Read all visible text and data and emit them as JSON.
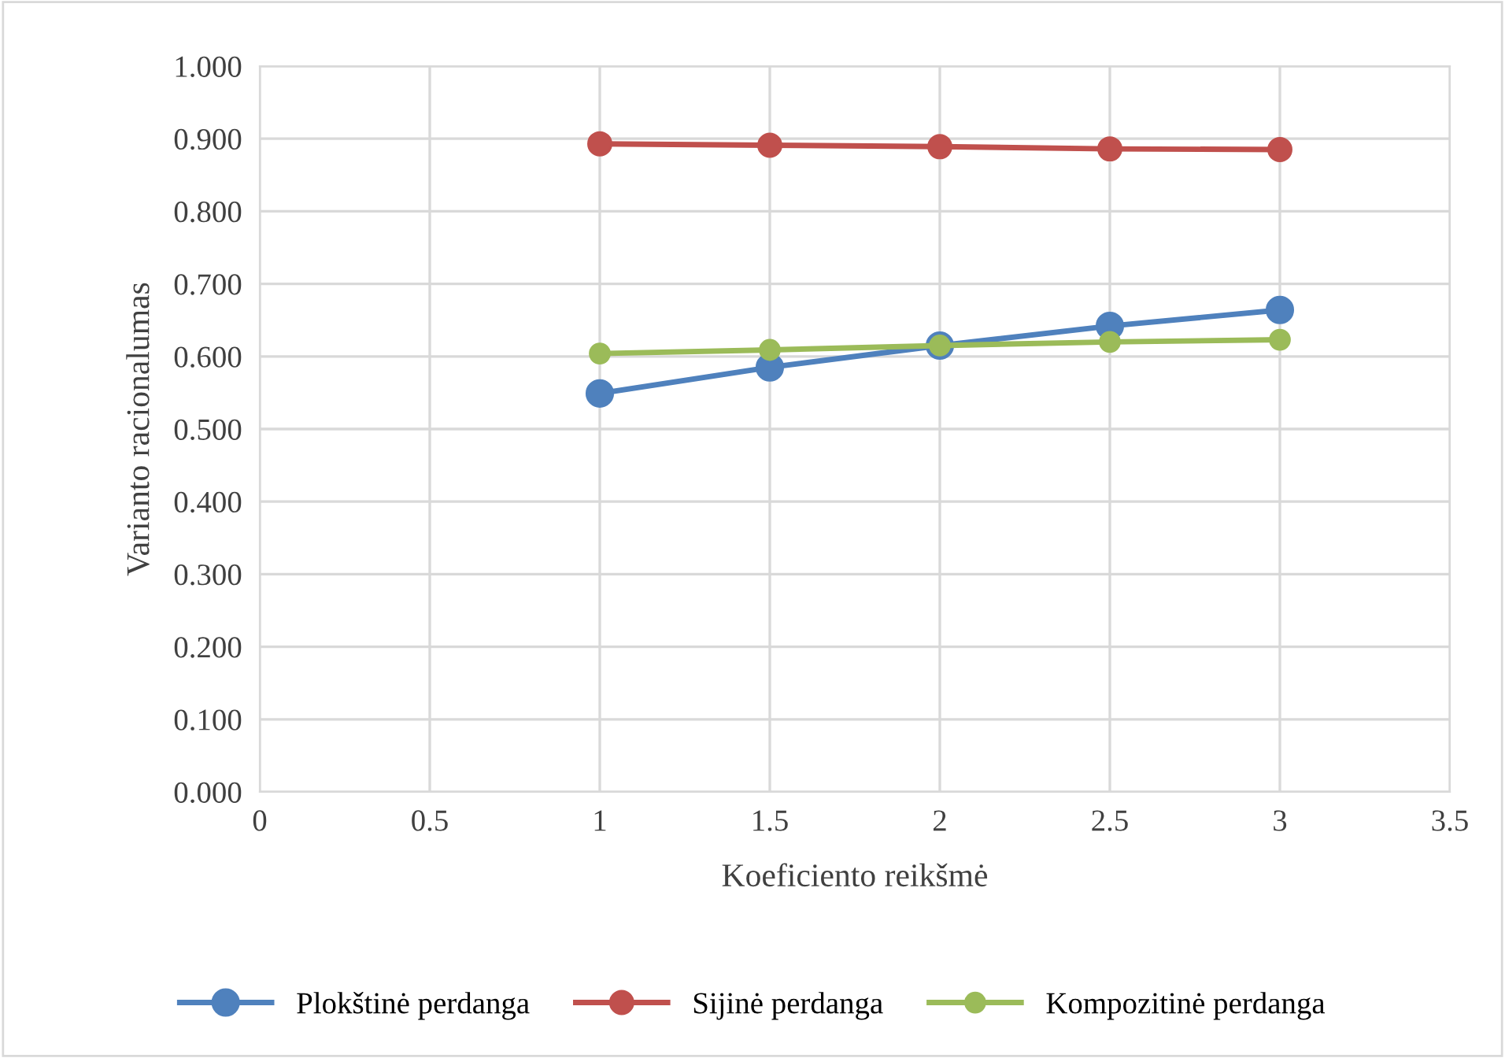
{
  "chart_data": {
    "type": "line",
    "xlabel": "Koeficiento reikšmė",
    "ylabel": "Varianto racionalumas",
    "x": [
      1,
      1.5,
      2,
      2.5,
      3
    ],
    "series": [
      {
        "name": "Plokštinė perdanga",
        "color": "#4f81bd",
        "values": [
          0.549,
          0.585,
          0.615,
          0.642,
          0.664
        ]
      },
      {
        "name": "Sijinė perdanga",
        "color": "#c0504d",
        "values": [
          0.893,
          0.891,
          0.889,
          0.886,
          0.885
        ]
      },
      {
        "name": "Kompozitinė perdanga",
        "color": "#9bbb59",
        "values": [
          0.604,
          0.609,
          0.615,
          0.62,
          0.623
        ]
      }
    ],
    "xlim": [
      0,
      3.5
    ],
    "xticks": [
      0,
      0.5,
      1,
      1.5,
      2,
      2.5,
      3,
      3.5
    ],
    "ylim": [
      0,
      1
    ],
    "yticks": [
      {
        "value": 0,
        "label": "0.000"
      },
      {
        "value": 0.1,
        "label": "0.100"
      },
      {
        "value": 0.2,
        "label": "0.200"
      },
      {
        "value": 0.3,
        "label": "0.300"
      },
      {
        "value": 0.4,
        "label": "0.400"
      },
      {
        "value": 0.5,
        "label": "0.500"
      },
      {
        "value": 0.6,
        "label": "0.600"
      },
      {
        "value": 0.7,
        "label": "0.700"
      },
      {
        "value": 0.8,
        "label": "0.800"
      },
      {
        "value": 0.9,
        "label": "0.900"
      },
      {
        "value": 1,
        "label": "1.000"
      }
    ],
    "grid": true,
    "legend": "bottom",
    "marker": "circle",
    "line_style": "solid"
  }
}
